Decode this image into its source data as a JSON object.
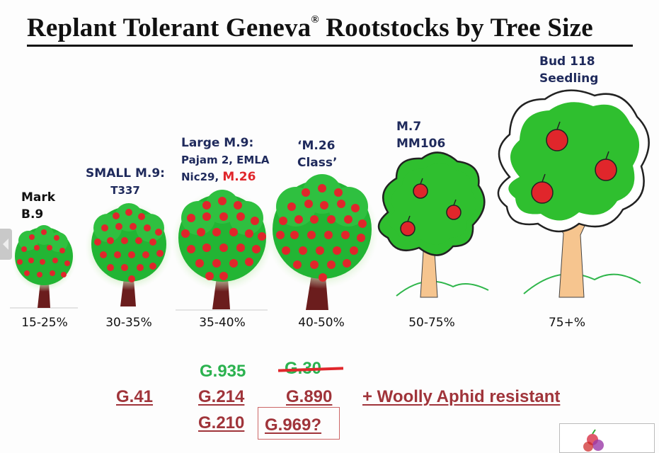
{
  "title": {
    "text": "Replant Tolerant Geneva",
    "reg_mark": "®",
    "text_end": " Rootstocks by Tree Size"
  },
  "trees": [
    {
      "label_lines": [
        "Mark",
        "B.9"
      ],
      "percent": "15-25%"
    },
    {
      "label_lines": [
        "SMALL M.9:",
        "T337"
      ],
      "percent": "30-35%"
    },
    {
      "label_lines": [
        "Large M.9:",
        "Pajam 2, EMLA",
        "Nic29, "
      ],
      "label_highlight": "M.26",
      "percent": "35-40%"
    },
    {
      "label_lines": [
        "‘M.26",
        "Class’"
      ],
      "percent": "40-50%"
    },
    {
      "label_lines": [
        "M.7",
        "MM106"
      ],
      "percent": "50-75%"
    },
    {
      "label_lines": [
        "Bud 118",
        "Seedling"
      ],
      "percent": "75+%"
    }
  ],
  "rootstocks": {
    "col1": [
      "G.41"
    ],
    "col2_green": "G.935",
    "col2": [
      "G.214",
      "G.210"
    ],
    "col3_struck": "G.30",
    "col3": [
      "G.890",
      "G.969?"
    ],
    "note": "+ Woolly Aphid resistant"
  },
  "colors": {
    "title": "#111111",
    "label_navy": "#1f2a5c",
    "highlight_red": "#e0262b",
    "rootstock_red": "#a0343a",
    "rootstock_green": "#2bb24f",
    "foliage_green": "#22b534",
    "trunk_brown": "#6b1d1d",
    "trunk_tan": "#f6c58f"
  },
  "icons": [
    "apple-tree-icon",
    "cartoon-tree-icon",
    "previous-slide-icon",
    "logo-icon"
  ]
}
